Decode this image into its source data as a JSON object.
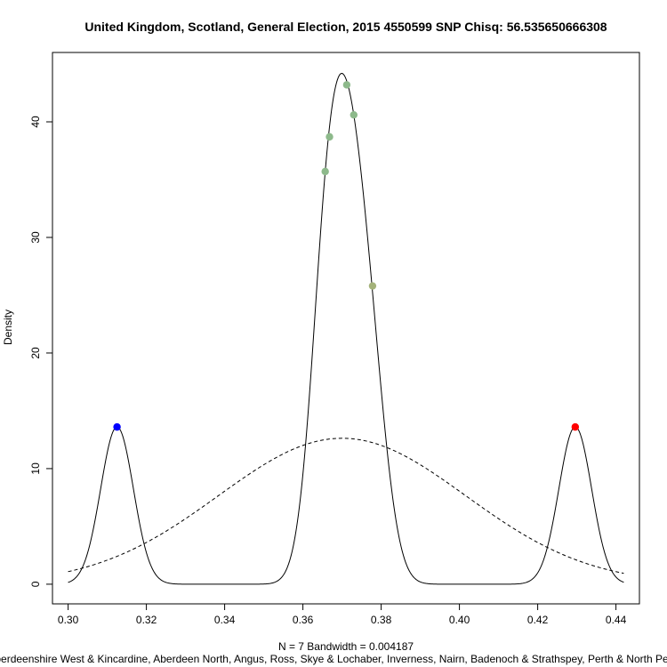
{
  "chart_data": {
    "type": "line",
    "title": "United Kingdom, Scotland, General Election, 2015 4550599 SNP Chisq: 56.535650666308",
    "ylabel": "Density",
    "xlabel": "N = 7   Bandwidth = 0.004187",
    "subtitle": "Aberdeenshire West & Kincardine, Aberdeen North, Angus, Ross, Skye & Lochaber, Inverness, Nairn, Badenoch & Strathspey, Perth & North Perthshire",
    "xlim": [
      0.296,
      0.446
    ],
    "ylim": [
      -1.7,
      46
    ],
    "x_ticks": [
      0.3,
      0.32,
      0.34,
      0.36,
      0.38,
      0.4,
      0.42,
      0.44
    ],
    "x_tick_labels": [
      "0.30",
      "0.32",
      "0.34",
      "0.36",
      "0.38",
      "0.40",
      "0.42",
      "0.44"
    ],
    "y_ticks": [
      0,
      10,
      20,
      30,
      40
    ],
    "y_tick_labels": [
      "0",
      "10",
      "20",
      "30",
      "40"
    ],
    "grid": false,
    "kde_bandwidth": 0.004187,
    "kde_x_range": [
      0.3,
      0.442
    ],
    "normal_curve": {
      "mean": 0.37,
      "sd": 0.0316
    },
    "points": [
      {
        "x": 0.3125,
        "y": 13.6,
        "color": "#0000ff"
      },
      {
        "x": 0.3657,
        "y": 35.7,
        "color": "#8db98b"
      },
      {
        "x": 0.3668,
        "y": 38.7,
        "color": "#8db98b"
      },
      {
        "x": 0.3712,
        "y": 43.2,
        "color": "#8db98b"
      },
      {
        "x": 0.373,
        "y": 40.6,
        "color": "#8db98b"
      },
      {
        "x": 0.3778,
        "y": 25.8,
        "color": "#a4b27a"
      },
      {
        "x": 0.4296,
        "y": 13.6,
        "color": "#ff0000"
      }
    ]
  }
}
